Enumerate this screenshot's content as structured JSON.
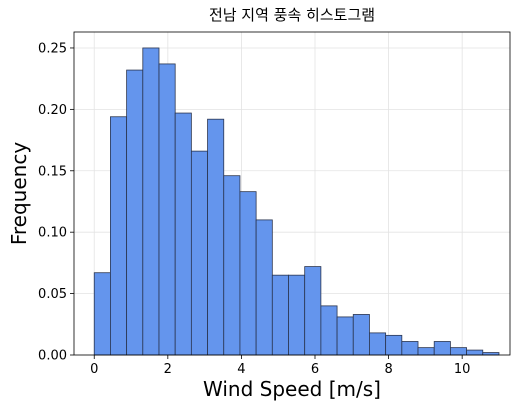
{
  "chart_data": {
    "type": "histogram",
    "title": "전남 지역 풍속 히스토그램",
    "xlabel": "Wind Speed [m/s]",
    "ylabel": "Frequency",
    "xlim": [
      -0.55,
      11.3
    ],
    "ylim": [
      0,
      0.263
    ],
    "xticks": [
      0,
      2,
      4,
      6,
      8,
      10
    ],
    "yticks": [
      0.0,
      0.05,
      0.1,
      0.15,
      0.2,
      0.25
    ],
    "ytick_labels": [
      "0.00",
      "0.05",
      "0.10",
      "0.15",
      "0.20",
      "0.25"
    ],
    "grid": true,
    "bar_color": "#6495ed",
    "edge_color": "#2a3550",
    "bins": [
      {
        "x0": 0.0,
        "x1": 0.44,
        "value": 0.067
      },
      {
        "x0": 0.44,
        "x1": 0.88,
        "value": 0.194
      },
      {
        "x0": 0.88,
        "x1": 1.32,
        "value": 0.232
      },
      {
        "x0": 1.32,
        "x1": 1.76,
        "value": 0.25
      },
      {
        "x0": 1.76,
        "x1": 2.2,
        "value": 0.237
      },
      {
        "x0": 2.2,
        "x1": 2.64,
        "value": 0.197
      },
      {
        "x0": 2.64,
        "x1": 3.08,
        "value": 0.166
      },
      {
        "x0": 3.08,
        "x1": 3.52,
        "value": 0.192
      },
      {
        "x0": 3.52,
        "x1": 3.96,
        "value": 0.146
      },
      {
        "x0": 3.96,
        "x1": 4.4,
        "value": 0.133
      },
      {
        "x0": 4.4,
        "x1": 4.84,
        "value": 0.11
      },
      {
        "x0": 4.84,
        "x1": 5.28,
        "value": 0.065
      },
      {
        "x0": 5.28,
        "x1": 5.72,
        "value": 0.065
      },
      {
        "x0": 5.72,
        "x1": 6.16,
        "value": 0.072
      },
      {
        "x0": 6.16,
        "x1": 6.6,
        "value": 0.04
      },
      {
        "x0": 6.6,
        "x1": 7.04,
        "value": 0.031
      },
      {
        "x0": 7.04,
        "x1": 7.48,
        "value": 0.033
      },
      {
        "x0": 7.48,
        "x1": 7.92,
        "value": 0.018
      },
      {
        "x0": 7.92,
        "x1": 8.36,
        "value": 0.016
      },
      {
        "x0": 8.36,
        "x1": 8.8,
        "value": 0.011
      },
      {
        "x0": 8.8,
        "x1": 9.24,
        "value": 0.006
      },
      {
        "x0": 9.24,
        "x1": 9.68,
        "value": 0.011
      },
      {
        "x0": 9.68,
        "x1": 10.12,
        "value": 0.006
      },
      {
        "x0": 10.12,
        "x1": 10.56,
        "value": 0.004
      },
      {
        "x0": 10.56,
        "x1": 11.0,
        "value": 0.002
      }
    ]
  }
}
